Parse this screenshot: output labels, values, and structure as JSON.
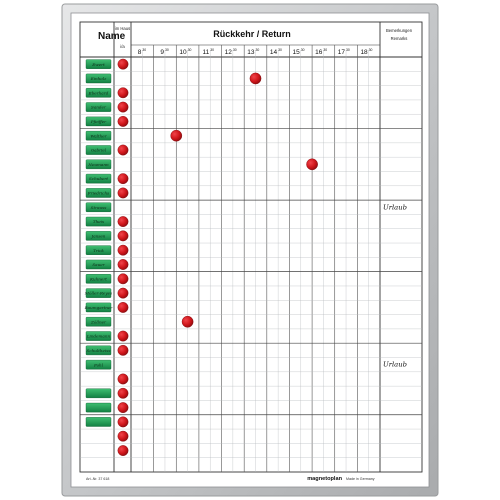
{
  "board": {
    "header_name": "Name",
    "header_in_house_top": "im Haus",
    "header_in_house_bottom": "i/a",
    "header_return": "Rückkehr / Return",
    "header_remarks_de": "Bemerkungen",
    "header_remarks_en": "Remarks",
    "article_number": "Art.-Nr. 37 618",
    "brand": "magnetoplan",
    "made_in": "Made in Germany",
    "frame_color": "#c8cacc",
    "grid_color": "#b5b8bb",
    "magnet_color": "#d0161b",
    "label_color": "#1e9a52"
  },
  "hours": [
    {
      "h": "8",
      "m": "30"
    },
    {
      "h": "9",
      "m": "30"
    },
    {
      "h": "10",
      "m": "30"
    },
    {
      "h": "11",
      "m": "30"
    },
    {
      "h": "12",
      "m": "30"
    },
    {
      "h": "13",
      "m": "30"
    },
    {
      "h": "14",
      "m": "30"
    },
    {
      "h": "15",
      "m": "30"
    },
    {
      "h": "16",
      "m": "30"
    },
    {
      "h": "17",
      "m": "30"
    },
    {
      "h": "18",
      "m": "30"
    }
  ],
  "rows": [
    {
      "name": "Ewert",
      "label": true,
      "in_house": true,
      "return": null,
      "remark": ""
    },
    {
      "name": "Einholz",
      "label": true,
      "in_house": false,
      "return": "13:30",
      "remark": ""
    },
    {
      "name": "Eberhard",
      "label": true,
      "in_house": true,
      "return": null,
      "remark": ""
    },
    {
      "name": "Sander",
      "label": true,
      "in_house": true,
      "return": null,
      "remark": ""
    },
    {
      "name": "Pfeiffer",
      "label": true,
      "in_house": true,
      "return": null,
      "remark": ""
    },
    {
      "name": "Walther",
      "label": true,
      "in_house": false,
      "return": "10:00",
      "remark": ""
    },
    {
      "name": "Gabriel",
      "label": true,
      "in_house": true,
      "return": null,
      "remark": ""
    },
    {
      "name": "Neumann",
      "label": true,
      "in_house": false,
      "return": "16:00",
      "remark": ""
    },
    {
      "name": "Schubert",
      "label": true,
      "in_house": true,
      "return": null,
      "remark": ""
    },
    {
      "name": "Friedrichs",
      "label": true,
      "in_house": true,
      "return": null,
      "remark": ""
    },
    {
      "name": "Strauss",
      "label": true,
      "in_house": false,
      "return": null,
      "remark": "Urlaub"
    },
    {
      "name": "Theis",
      "label": true,
      "in_house": true,
      "return": null,
      "remark": ""
    },
    {
      "name": "Jansen",
      "label": true,
      "in_house": true,
      "return": null,
      "remark": ""
    },
    {
      "name": "Trick",
      "label": true,
      "in_house": true,
      "return": null,
      "remark": ""
    },
    {
      "name": "Sauer",
      "label": true,
      "in_house": true,
      "return": null,
      "remark": ""
    },
    {
      "name": "Kuhnert",
      "label": true,
      "in_house": true,
      "return": null,
      "remark": ""
    },
    {
      "name": "Möller-Reyes",
      "label": true,
      "in_house": true,
      "return": null,
      "remark": ""
    },
    {
      "name": "Baumgartner",
      "label": true,
      "in_house": true,
      "return": null,
      "remark": ""
    },
    {
      "name": "Zöllner",
      "label": true,
      "in_house": false,
      "return": "10:30",
      "remark": ""
    },
    {
      "name": "Lindemann",
      "label": true,
      "in_house": true,
      "return": null,
      "remark": ""
    },
    {
      "name": "Schultheiss",
      "label": true,
      "in_house": true,
      "return": null,
      "remark": ""
    },
    {
      "name": "Pohl",
      "label": true,
      "in_house": false,
      "return": null,
      "remark": "Urlaub"
    },
    {
      "name": "",
      "label": false,
      "in_house": true,
      "return": null,
      "remark": ""
    },
    {
      "name": "",
      "label": true,
      "in_house": true,
      "return": null,
      "remark": ""
    },
    {
      "name": "",
      "label": true,
      "in_house": true,
      "return": null,
      "remark": ""
    },
    {
      "name": "",
      "label": true,
      "in_house": true,
      "return": null,
      "remark": ""
    },
    {
      "name": "",
      "label": false,
      "in_house": true,
      "return": null,
      "remark": ""
    },
    {
      "name": "",
      "label": false,
      "in_house": true,
      "return": null,
      "remark": ""
    },
    {
      "name": "",
      "label": false,
      "in_house": false,
      "return": null,
      "remark": ""
    }
  ]
}
